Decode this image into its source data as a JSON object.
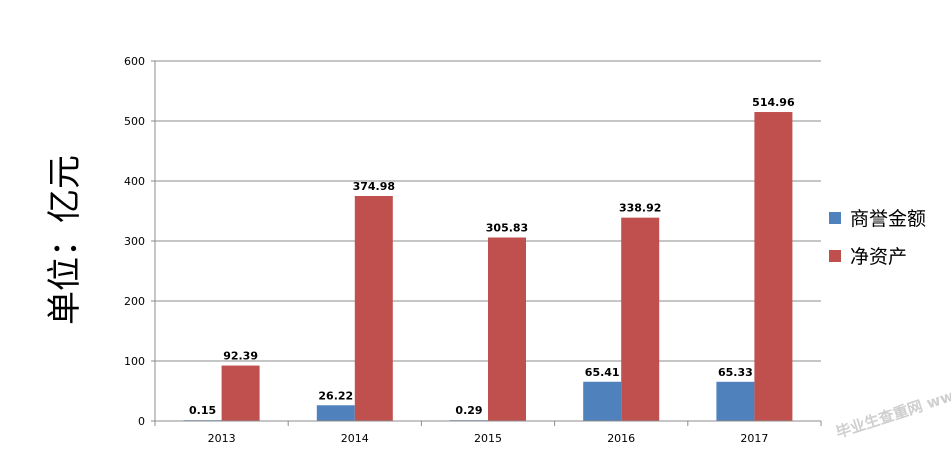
{
  "chart_data": {
    "type": "bar",
    "categories": [
      "2013",
      "2014",
      "2015",
      "2016",
      "2017"
    ],
    "series": [
      {
        "name": "商誉金额",
        "values": [
          0.15,
          26.22,
          0.29,
          65.41,
          65.33
        ],
        "color": "#4f81bd"
      },
      {
        "name": "净资产",
        "values": [
          92.39,
          374.98,
          305.83,
          338.92,
          514.96
        ],
        "color": "#c0504d"
      }
    ],
    "data_labels": [
      [
        "0.15",
        "26.22",
        "0.29",
        "65.41",
        "65.33"
      ],
      [
        "92.39",
        "374.98",
        "305.83",
        "338.92",
        "514.96"
      ]
    ],
    "ylabel": "单位：亿元",
    "ylim": [
      0,
      600
    ],
    "yticks": [
      0,
      100,
      200,
      300,
      400,
      500,
      600
    ],
    "grid": true,
    "legend_position": "right",
    "watermark": "毕业生查重网 www.abvv.com"
  }
}
